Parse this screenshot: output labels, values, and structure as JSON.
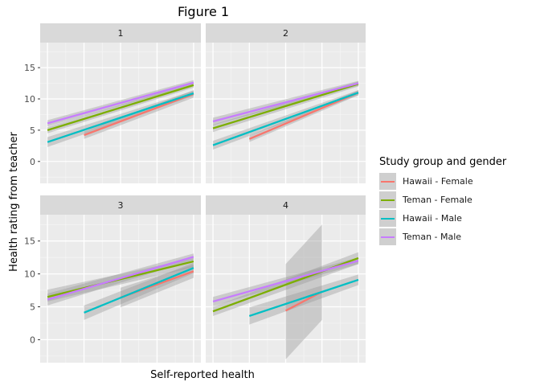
{
  "title": "Figure 1",
  "xlabel": "Self-reported health",
  "ylabel": "Health rating from teacher",
  "legend": {
    "title": "Study group and gender",
    "items": [
      {
        "label": "Hawaii - Female",
        "color": "#F8766D"
      },
      {
        "label": "Teman - Female",
        "color": "#7CAE00"
      },
      {
        "label": "Hawaii - Male",
        "color": "#00BFC4"
      },
      {
        "label": "Teman - Male",
        "color": "#C77CFF"
      }
    ]
  },
  "chart_data": {
    "type": "line",
    "facets": [
      "1",
      "2",
      "3",
      "4"
    ],
    "xlim": [
      0.8,
      5.2
    ],
    "ylim": [
      -3.5,
      19
    ],
    "yticks": [
      0,
      5,
      10,
      15
    ],
    "xticks": [],
    "grid": true,
    "legend_position": "right",
    "panels": [
      {
        "facet": "1",
        "series": [
          {
            "name": "Hawaii - Female",
            "x": [
              2,
              5
            ],
            "y": [
              4.2,
              10.8
            ],
            "lower": [
              3.6,
              10.2
            ],
            "upper": [
              4.8,
              11.4
            ]
          },
          {
            "name": "Teman - Female",
            "x": [
              1,
              5
            ],
            "y": [
              5,
              12.2
            ],
            "lower": [
              4.5,
              11.8
            ],
            "upper": [
              5.5,
              12.6
            ]
          },
          {
            "name": "Hawaii - Male",
            "x": [
              1,
              5
            ],
            "y": [
              3.1,
              10.9
            ],
            "lower": [
              2.3,
              10.5
            ],
            "upper": [
              3.9,
              11.3
            ]
          },
          {
            "name": "Teman - Male",
            "x": [
              1,
              5
            ],
            "y": [
              6.1,
              12.6
            ],
            "lower": [
              5.6,
              12.2
            ],
            "upper": [
              6.6,
              13.0
            ]
          }
        ]
      },
      {
        "facet": "2",
        "series": [
          {
            "name": "Hawaii - Female",
            "x": [
              2,
              5
            ],
            "y": [
              3.6,
              11
            ],
            "lower": [
              3.1,
              10.6
            ],
            "upper": [
              4.1,
              11.4
            ]
          },
          {
            "name": "Teman - Female",
            "x": [
              1,
              5
            ],
            "y": [
              5.3,
              12.4
            ],
            "lower": [
              4.7,
              12.0
            ],
            "upper": [
              5.9,
              12.8
            ]
          },
          {
            "name": "Hawaii - Male",
            "x": [
              1,
              5
            ],
            "y": [
              2.6,
              11
            ],
            "lower": [
              1.9,
              10.6
            ],
            "upper": [
              3.3,
              11.4
            ]
          },
          {
            "name": "Teman - Male",
            "x": [
              1,
              5
            ],
            "y": [
              6.4,
              12.5
            ],
            "lower": [
              5.8,
              12.1
            ],
            "upper": [
              7.0,
              12.9
            ]
          }
        ]
      },
      {
        "facet": "3",
        "series": [
          {
            "name": "Hawaii - Female",
            "x": [
              3,
              5
            ],
            "y": [
              6.4,
              10.4
            ],
            "lower": [
              4.9,
              9.4
            ],
            "upper": [
              7.9,
              11.4
            ]
          },
          {
            "name": "Teman - Female",
            "x": [
              1,
              5
            ],
            "y": [
              6.5,
              11.9
            ],
            "lower": [
              5.8,
              11.0
            ],
            "upper": [
              7.6,
              12.4
            ]
          },
          {
            "name": "Hawaii - Male",
            "x": [
              2,
              5
            ],
            "y": [
              4.1,
              10.9
            ],
            "lower": [
              3.0,
              10.1
            ],
            "upper": [
              5.2,
              11.7
            ]
          },
          {
            "name": "Teman - Male",
            "x": [
              1,
              5
            ],
            "y": [
              6.1,
              12.6
            ],
            "lower": [
              5.2,
              12.1
            ],
            "upper": [
              7.0,
              13.1
            ]
          }
        ]
      },
      {
        "facet": "4",
        "series": [
          {
            "name": "Hawaii - Female",
            "x": [
              3,
              4
            ],
            "y": [
              4.4,
              7.3
            ],
            "lower": [
              -3,
              3
            ],
            "upper": [
              11.5,
              17.5
            ]
          },
          {
            "name": "Teman - Female",
            "x": [
              1,
              5
            ],
            "y": [
              4.3,
              12.4
            ],
            "lower": [
              3.6,
              11.5
            ],
            "upper": [
              5.0,
              13.3
            ]
          },
          {
            "name": "Hawaii - Male",
            "x": [
              2,
              5
            ],
            "y": [
              3.6,
              9.1
            ],
            "lower": [
              2.3,
              8.3
            ],
            "upper": [
              4.9,
              9.9
            ]
          },
          {
            "name": "Teman - Male",
            "x": [
              1,
              5
            ],
            "y": [
              5.8,
              12
            ],
            "lower": [
              5.1,
              11.5
            ],
            "upper": [
              6.5,
              12.5
            ]
          }
        ]
      }
    ]
  }
}
